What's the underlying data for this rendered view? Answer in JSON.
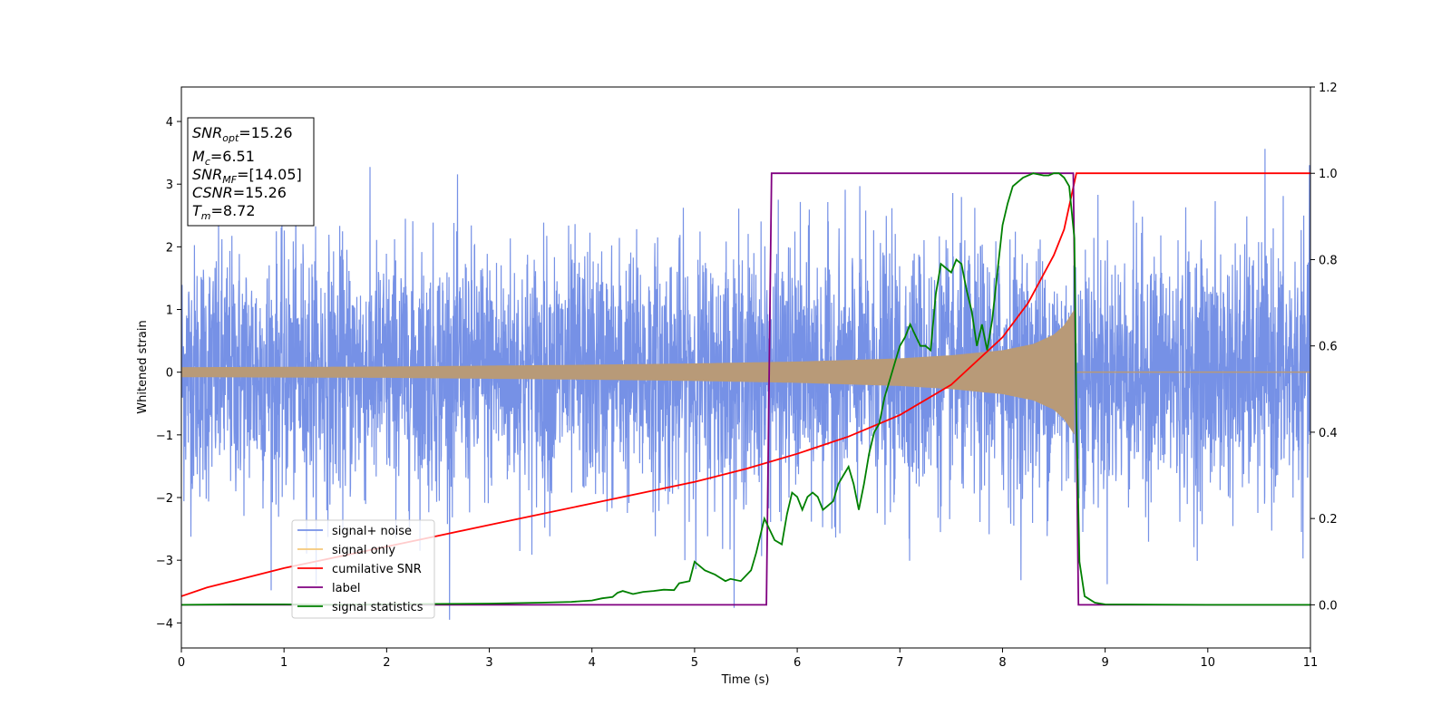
{
  "chart_data": {
    "type": "line",
    "xlabel": "Time (s)",
    "ylabel": "Whitened strain",
    "xlim": [
      0,
      11
    ],
    "ylim_left": [
      -4.4,
      4.55
    ],
    "ylim_right": [
      -0.1,
      1.2
    ],
    "x_ticks": [
      "0",
      "1",
      "2",
      "3",
      "4",
      "5",
      "6",
      "7",
      "8",
      "9",
      "10",
      "11"
    ],
    "y_left_ticks": [
      "−4",
      "−3",
      "−2",
      "−1",
      "0",
      "1",
      "2",
      "3",
      "4"
    ],
    "y_right_ticks": [
      "0.0",
      "0.2",
      "0.4",
      "0.6",
      "0.8",
      "1.0",
      "1.2"
    ],
    "info_box": {
      "snr_opt": {
        "base": "SNR",
        "sub": "opt",
        "rest": "=15.26"
      },
      "mc": {
        "base": "M",
        "sub": "c",
        "rest": "=6.51"
      },
      "snr_mf": {
        "base": "SNR",
        "sub": "MF",
        "rest": "=[14.05]"
      },
      "csnr": {
        "base": "CSNR",
        "rest": "=15.26"
      },
      "tm": {
        "base": "T",
        "sub": "m",
        "rest": "=8.72"
      }
    },
    "legend_position": "lower-left",
    "legend": [
      "signal+ noise",
      "signal only",
      "cumilative SNR",
      "label",
      "signal statistics"
    ],
    "colors": {
      "signal_noise": "#7691e6",
      "signal_only": "#f5c87a",
      "signal_fill": "#b89a78",
      "cumulative_snr": "#ff0000",
      "label": "#800080",
      "signal_statistics": "#008000"
    },
    "series": [
      {
        "name": "signal+ noise",
        "axis": "left",
        "description": "whitened noisy strain, approx. standard normal, peaks up to ~4.2, troughs down to ~-3.9"
      },
      {
        "name": "signal only",
        "axis": "left",
        "amplitude_x": [
          0,
          2,
          4,
          5,
          6,
          7,
          7.5,
          8,
          8.3,
          8.5,
          8.6,
          8.7,
          8.72
        ],
        "amplitude_y": [
          0.08,
          0.09,
          0.12,
          0.14,
          0.17,
          0.22,
          0.27,
          0.35,
          0.45,
          0.6,
          0.75,
          1.0,
          0
        ],
        "after_merger": 0
      },
      {
        "name": "cumilative SNR",
        "axis": "right",
        "x": [
          0,
          0.25,
          0.5,
          1,
          1.5,
          2,
          2.5,
          3,
          3.5,
          4,
          4.5,
          5,
          5.5,
          6,
          6.5,
          7,
          7.5,
          8,
          8.25,
          8.5,
          8.6,
          8.72,
          11
        ],
        "y": [
          0.02,
          0.04,
          0.055,
          0.085,
          0.11,
          0.135,
          0.16,
          0.185,
          0.21,
          0.235,
          0.26,
          0.285,
          0.315,
          0.35,
          0.39,
          0.44,
          0.51,
          0.62,
          0.7,
          0.81,
          0.87,
          1.0,
          1.0
        ]
      },
      {
        "name": "label",
        "axis": "right",
        "x": [
          0,
          5.7,
          5.75,
          8.69,
          8.74,
          11
        ],
        "y": [
          0,
          0,
          1,
          1,
          0,
          0
        ]
      },
      {
        "name": "signal statistics",
        "axis": "right",
        "x": [
          0,
          0.5,
          1,
          1.5,
          2,
          2.5,
          3,
          3.5,
          3.8,
          4.0,
          4.1,
          4.2,
          4.25,
          4.3,
          4.4,
          4.5,
          4.6,
          4.7,
          4.8,
          4.85,
          4.95,
          5.0,
          5.1,
          5.2,
          5.3,
          5.35,
          5.45,
          5.55,
          5.6,
          5.68,
          5.72,
          5.78,
          5.85,
          5.9,
          5.95,
          6.0,
          6.05,
          6.1,
          6.15,
          6.2,
          6.25,
          6.3,
          6.35,
          6.4,
          6.45,
          6.5,
          6.55,
          6.6,
          6.65,
          6.7,
          6.75,
          6.8,
          6.85,
          6.9,
          6.95,
          7.0,
          7.05,
          7.1,
          7.2,
          7.25,
          7.3,
          7.35,
          7.4,
          7.45,
          7.5,
          7.55,
          7.6,
          7.65,
          7.7,
          7.75,
          7.8,
          7.85,
          7.9,
          7.95,
          8.0,
          8.05,
          8.1,
          8.2,
          8.3,
          8.4,
          8.45,
          8.5,
          8.55,
          8.6,
          8.65,
          8.7,
          8.72,
          8.75,
          8.8,
          8.9,
          9.0,
          10.0,
          11.0
        ],
        "y": [
          0,
          0.001,
          0.001,
          0,
          0.001,
          0.002,
          0.003,
          0.005,
          0.007,
          0.01,
          0.015,
          0.018,
          0.028,
          0.032,
          0.025,
          0.03,
          0.032,
          0.035,
          0.034,
          0.05,
          0.055,
          0.1,
          0.08,
          0.07,
          0.055,
          0.06,
          0.055,
          0.08,
          0.12,
          0.2,
          0.18,
          0.15,
          0.14,
          0.21,
          0.26,
          0.25,
          0.22,
          0.25,
          0.26,
          0.25,
          0.22,
          0.23,
          0.24,
          0.28,
          0.3,
          0.32,
          0.28,
          0.22,
          0.28,
          0.35,
          0.4,
          0.42,
          0.48,
          0.52,
          0.56,
          0.6,
          0.62,
          0.65,
          0.6,
          0.6,
          0.59,
          0.72,
          0.79,
          0.78,
          0.77,
          0.8,
          0.79,
          0.73,
          0.68,
          0.6,
          0.65,
          0.59,
          0.66,
          0.77,
          0.88,
          0.93,
          0.97,
          0.99,
          1.0,
          0.995,
          0.995,
          1.0,
          1.0,
          0.99,
          0.97,
          0.85,
          0.45,
          0.1,
          0.02,
          0.005,
          0.001,
          0,
          0
        ]
      }
    ]
  }
}
